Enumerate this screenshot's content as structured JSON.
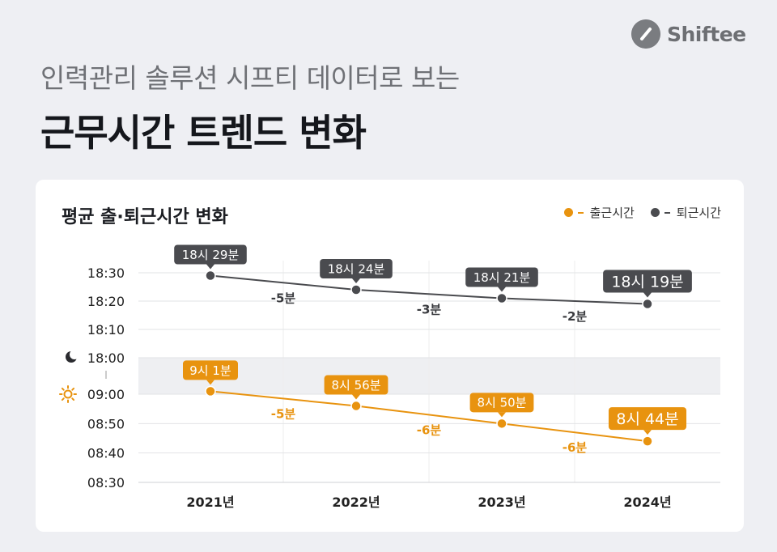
{
  "brand": {
    "name": "Shiftee"
  },
  "header": {
    "subtitle": "인력관리 솔루션 시프티 데이터로 보는",
    "title": "근무시간 트렌드 변화"
  },
  "chart_data": {
    "type": "line",
    "title": "평균 출·퇴근시간 변화",
    "categories": [
      "2021년",
      "2022년",
      "2023년",
      "2024년"
    ],
    "legend_position": "top-right",
    "grid": true,
    "axis_break": "between 09:00 and 18:00",
    "series": [
      {
        "name": "퇴근시간",
        "color": "#4a4b4f",
        "icon": "moon-icon",
        "values": [
          "18:29",
          "18:24",
          "18:21",
          "18:19"
        ],
        "labels": [
          "18시 29분",
          "18시 24분",
          "18시 21분",
          "18시 19분"
        ],
        "deltas": [
          "-5분",
          "-3분",
          "-2분"
        ],
        "yticks": [
          "18:30",
          "18:20",
          "18:10",
          "18:00"
        ],
        "ylim": [
          "18:00",
          "18:30"
        ]
      },
      {
        "name": "출근시간",
        "color": "#e8930f",
        "icon": "sun-icon",
        "values": [
          "09:01",
          "08:56",
          "08:50",
          "08:44"
        ],
        "labels": [
          "9시 1분",
          "8시 56분",
          "8시 50분",
          "8시 44분"
        ],
        "deltas": [
          "-5분",
          "-6분",
          "-6분"
        ],
        "yticks": [
          "09:00",
          "08:50",
          "08:40",
          "08:30"
        ],
        "ylim": [
          "08:30",
          "09:00"
        ]
      }
    ]
  }
}
